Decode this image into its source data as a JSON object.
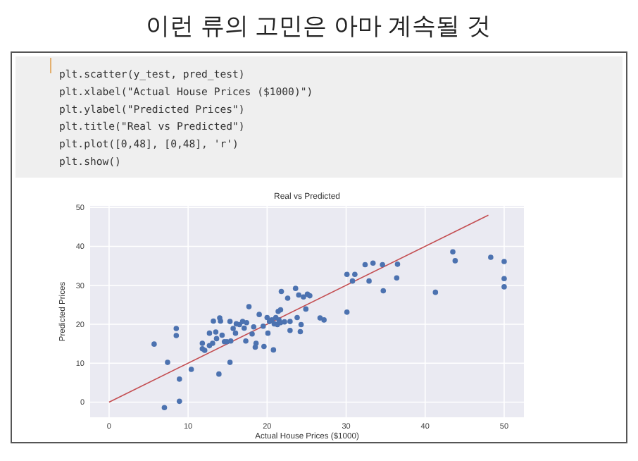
{
  "chart_data": [
    {
      "type": "other",
      "title": "이런 류의 고민은 아마 계속될 것",
      "annotations": [
        "plt.scatter(y_test, pred_test)",
        "plt.xlabel(\"Actual House Prices ($1000)\")",
        "plt.ylabel(\"Predicted Prices\")",
        "plt.title(\"Real vs Predicted\")",
        "plt.plot([0,48], [0,48], 'r')",
        "plt.show()"
      ]
    },
    {
      "type": "scatter",
      "title": "Real vs Predicted",
      "xlabel": "Actual House Prices ($1000)",
      "ylabel": "Predicted Prices",
      "xlim": [
        -2.4,
        52.5
      ],
      "ylim": [
        -3.9,
        50.4
      ],
      "xticks": [
        0,
        10,
        20,
        30,
        40,
        50
      ],
      "yticks": [
        0,
        10,
        20,
        30,
        40,
        50
      ],
      "grid": true,
      "series": [
        {
          "type": "scatter",
          "marker": "circle",
          "color": "#4c72b0",
          "x": [
            5.7,
            7.4,
            7.0,
            8.5,
            8.5,
            8.9,
            8.9,
            10.4,
            11.8,
            11.8,
            12.1,
            12.7,
            12.7,
            13.2,
            13.5,
            13.1,
            13.6,
            13.9,
            14.0,
            14.1,
            14.3,
            14.6,
            14.9,
            15.3,
            15.3,
            15.7,
            15.4,
            16.0,
            16.1,
            16.5,
            16.9,
            17.1,
            17.4,
            17.3,
            17.7,
            18.1,
            18.3,
            18.5,
            18.6,
            19.0,
            19.5,
            19.6,
            20.0,
            20.1,
            20.3,
            20.6,
            20.8,
            20.9,
            21.1,
            21.3,
            21.4,
            21.5,
            21.7,
            21.7,
            21.8,
            22.2,
            22.6,
            22.9,
            22.9,
            23.6,
            23.8,
            24.0,
            24.3,
            24.2,
            24.6,
            24.9,
            25.1,
            25.4,
            26.7,
            27.2,
            30.1,
            30.1,
            31.1,
            30.8,
            32.4,
            32.9,
            33.4,
            34.6,
            34.7,
            36.5,
            36.4,
            41.3,
            43.5,
            43.8,
            48.3,
            50.0,
            50.0,
            50.0
          ],
          "values": [
            14.9,
            10.2,
            -1.4,
            18.9,
            17.1,
            5.9,
            0.2,
            8.4,
            13.7,
            15.1,
            13.3,
            14.5,
            17.7,
            20.8,
            18.0,
            15.1,
            16.3,
            7.2,
            21.6,
            20.8,
            17.2,
            15.5,
            15.5,
            20.7,
            10.2,
            18.9,
            15.7,
            17.7,
            20.1,
            19.9,
            20.7,
            19.0,
            20.4,
            15.7,
            24.5,
            17.5,
            19.3,
            14.1,
            15.1,
            22.5,
            19.5,
            14.3,
            21.7,
            17.7,
            20.7,
            21.1,
            13.4,
            20.1,
            21.7,
            19.9,
            23.3,
            21.1,
            20.4,
            23.7,
            28.4,
            20.6,
            26.7,
            18.4,
            20.7,
            29.2,
            21.7,
            27.5,
            19.9,
            18.1,
            27.0,
            23.9,
            27.7,
            27.3,
            21.6,
            21.1,
            32.8,
            23.1,
            32.8,
            31.1,
            35.3,
            31.1,
            35.7,
            35.3,
            28.6,
            35.4,
            31.9,
            28.2,
            38.6,
            36.3,
            37.2,
            36.1,
            31.7,
            29.6
          ]
        },
        {
          "type": "line",
          "color": "#c44e52",
          "x": [
            0,
            48
          ],
          "values": [
            0,
            48
          ]
        }
      ]
    }
  ]
}
